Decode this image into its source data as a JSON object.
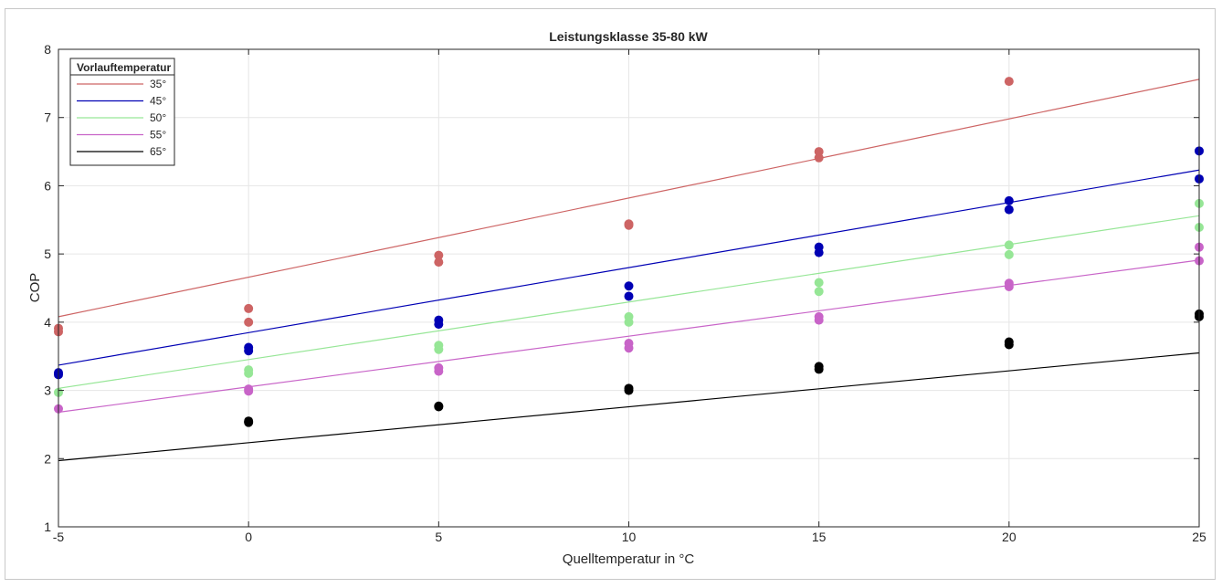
{
  "chart_data": {
    "type": "scatter",
    "title": "Leistungsklasse 35-80 kW",
    "xlabel": "Quelltemperatur in °C",
    "ylabel": "COP",
    "xlim": [
      -5,
      25
    ],
    "ylim": [
      1,
      8
    ],
    "xticks": [
      "-5",
      "0",
      "5",
      "10",
      "15",
      "20",
      "25"
    ],
    "yticks": [
      "1",
      "2",
      "3",
      "4",
      "5",
      "6",
      "7",
      "8"
    ],
    "grid": true,
    "legend": {
      "title": "Vorlauftemperatur",
      "placement": "top-left"
    },
    "series": [
      {
        "name": "35°",
        "color": "#cd6464",
        "line": [
          [
            -5,
            4.08
          ],
          [
            25,
            7.56
          ]
        ],
        "points": [
          [
            -5,
            3.86
          ],
          [
            -5,
            3.91
          ],
          [
            0,
            4.0
          ],
          [
            0,
            4.2
          ],
          [
            5,
            4.88
          ],
          [
            5,
            4.98
          ],
          [
            10,
            5.42
          ],
          [
            10,
            5.44
          ],
          [
            15,
            6.41
          ],
          [
            15,
            6.5
          ],
          [
            20,
            7.53
          ]
        ]
      },
      {
        "name": "45°",
        "color": "#0000b4",
        "line": [
          [
            -5,
            3.37
          ],
          [
            25,
            6.23
          ]
        ],
        "points": [
          [
            -5,
            3.23
          ],
          [
            -5,
            3.26
          ],
          [
            0,
            3.58
          ],
          [
            0,
            3.63
          ],
          [
            5,
            3.97
          ],
          [
            5,
            4.03
          ],
          [
            10,
            4.38
          ],
          [
            10,
            4.53
          ],
          [
            15,
            5.02
          ],
          [
            15,
            5.1
          ],
          [
            20,
            5.65
          ],
          [
            20,
            5.78
          ],
          [
            25,
            6.1
          ],
          [
            25,
            6.51
          ]
        ]
      },
      {
        "name": "50°",
        "color": "#96e696",
        "line": [
          [
            -5,
            3.03
          ],
          [
            25,
            5.56
          ]
        ],
        "points": [
          [
            -5,
            2.97
          ],
          [
            0,
            3.25
          ],
          [
            0,
            3.3
          ],
          [
            5,
            3.6
          ],
          [
            5,
            3.66
          ],
          [
            10,
            4.0
          ],
          [
            10,
            4.08
          ],
          [
            15,
            4.45
          ],
          [
            15,
            4.58
          ],
          [
            20,
            4.99
          ],
          [
            20,
            5.13
          ],
          [
            25,
            5.39
          ],
          [
            25,
            5.74
          ]
        ]
      },
      {
        "name": "55°",
        "color": "#c864c8",
        "line": [
          [
            -5,
            2.68
          ],
          [
            25,
            4.91
          ]
        ],
        "points": [
          [
            -5,
            2.73
          ],
          [
            0,
            2.99
          ],
          [
            0,
            3.02
          ],
          [
            5,
            3.28
          ],
          [
            5,
            3.33
          ],
          [
            10,
            3.62
          ],
          [
            10,
            3.69
          ],
          [
            15,
            4.03
          ],
          [
            15,
            4.08
          ],
          [
            20,
            4.52
          ],
          [
            20,
            4.57
          ],
          [
            25,
            4.9
          ],
          [
            25,
            5.1
          ]
        ]
      },
      {
        "name": "65°",
        "color": "#000000",
        "line": [
          [
            -5,
            1.97
          ],
          [
            25,
            3.55
          ]
        ],
        "points": [
          [
            0,
            2.53
          ],
          [
            0,
            2.55
          ],
          [
            5,
            2.76
          ],
          [
            5,
            2.77
          ],
          [
            10,
            3.0
          ],
          [
            10,
            3.03
          ],
          [
            15,
            3.31
          ],
          [
            15,
            3.35
          ],
          [
            20,
            3.67
          ],
          [
            20,
            3.71
          ],
          [
            25,
            4.08
          ],
          [
            25,
            4.12
          ]
        ]
      }
    ]
  }
}
